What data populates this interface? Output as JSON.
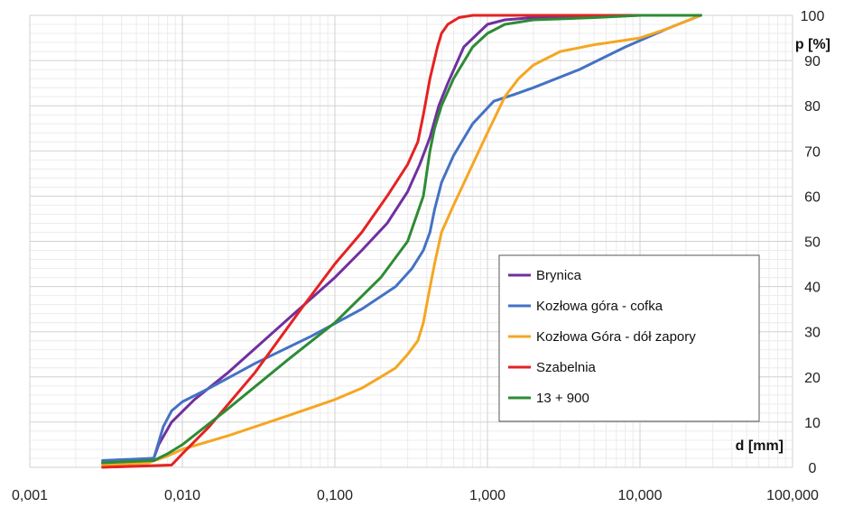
{
  "chart_data": {
    "type": "line",
    "title": "",
    "xlabel": "d [mm]",
    "ylabel": "p [%]",
    "x_scale": "log",
    "xlim": [
      0.001,
      100
    ],
    "ylim": [
      0,
      100
    ],
    "grid": true,
    "legend_position": "bottom-right",
    "x_tick_labels": [
      "0,001",
      "0,010",
      "0,100",
      "1,000",
      "10,000",
      "100,000"
    ],
    "y_tick_labels": [
      "0",
      "10",
      "20",
      "30",
      "40",
      "50",
      "60",
      "70",
      "80",
      "90",
      "100"
    ],
    "series": [
      {
        "name": "Brynica",
        "color": "#7030a0",
        "x": [
          0.003,
          0.0065,
          0.007,
          0.0085,
          0.012,
          0.02,
          0.05,
          0.1,
          0.15,
          0.22,
          0.3,
          0.36,
          0.42,
          0.48,
          0.55,
          0.7,
          1.0,
          1.3,
          2,
          5,
          10,
          25
        ],
        "y": [
          1,
          2,
          5,
          10,
          15,
          21,
          33,
          42,
          48,
          54,
          61,
          67,
          73,
          80,
          85,
          93,
          98,
          99,
          99.5,
          99.8,
          100,
          100
        ]
      },
      {
        "name": "Kozłowa góra - cofka",
        "color": "#4472c4",
        "x": [
          0.003,
          0.0065,
          0.0075,
          0.0085,
          0.01,
          0.015,
          0.03,
          0.07,
          0.15,
          0.25,
          0.32,
          0.38,
          0.42,
          0.45,
          0.5,
          0.6,
          0.8,
          1.1,
          1.5,
          2,
          4,
          8,
          15,
          25
        ],
        "y": [
          1.5,
          2,
          9,
          12.5,
          14.5,
          17.5,
          23,
          29,
          35,
          40,
          44,
          48,
          52,
          57,
          63,
          69,
          76,
          81,
          82.5,
          84,
          88,
          93,
          97,
          100
        ]
      },
      {
        "name": "Kozłowa Góra - dół zapory",
        "color": "#f5a623",
        "x": [
          0.003,
          0.006,
          0.008,
          0.01,
          0.02,
          0.05,
          0.1,
          0.15,
          0.2,
          0.25,
          0.3,
          0.35,
          0.38,
          0.41,
          0.45,
          0.5,
          0.6,
          0.8,
          1.0,
          1.3,
          1.6,
          2,
          3,
          5,
          10,
          15,
          25
        ],
        "y": [
          0.5,
          1,
          2.5,
          4,
          7,
          11.5,
          15,
          17.5,
          20,
          22,
          25,
          28,
          32,
          38,
          45,
          52,
          58,
          67,
          74,
          82,
          86,
          89,
          92,
          93.5,
          95,
          97,
          100
        ]
      },
      {
        "name": "Szabelnia",
        "color": "#e52222",
        "x": [
          0.003,
          0.0085,
          0.01,
          0.015,
          0.03,
          0.06,
          0.1,
          0.15,
          0.22,
          0.3,
          0.35,
          0.38,
          0.42,
          0.47,
          0.5,
          0.55,
          0.65,
          0.8,
          1.0,
          25
        ],
        "y": [
          0,
          0.5,
          3,
          9,
          21,
          35,
          45,
          52,
          60,
          67,
          72,
          78,
          86,
          93,
          96,
          98,
          99.5,
          100,
          100,
          100
        ]
      },
      {
        "name": "13 + 900",
        "color": "#2e8b35",
        "x": [
          0.003,
          0.0065,
          0.008,
          0.01,
          0.02,
          0.05,
          0.1,
          0.2,
          0.3,
          0.38,
          0.42,
          0.45,
          0.5,
          0.6,
          0.8,
          1.0,
          1.3,
          2,
          5,
          10,
          25
        ],
        "y": [
          1,
          1.5,
          3,
          5,
          13,
          24,
          32,
          42,
          50,
          60,
          70,
          75,
          80,
          86,
          93,
          96,
          98,
          99,
          99.5,
          100,
          100
        ]
      }
    ]
  }
}
